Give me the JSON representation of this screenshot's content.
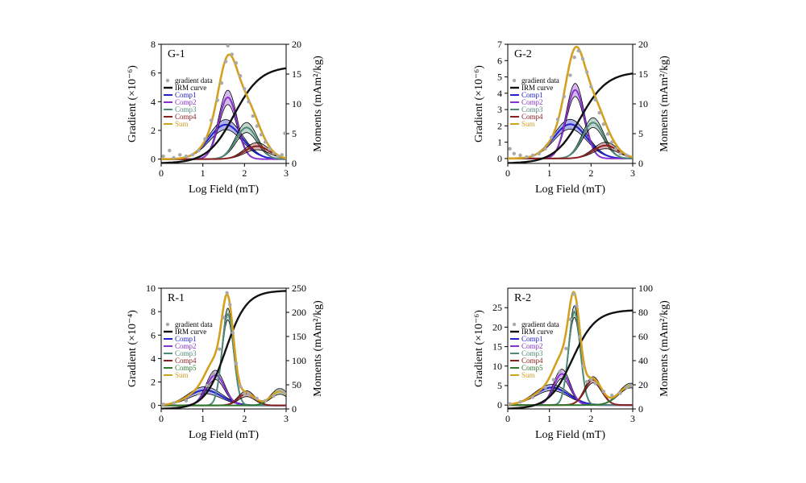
{
  "chart_data": [
    {
      "type": "line",
      "label": "G-1",
      "xlabel": "Log Field (mT)",
      "ylabel": "Gradient (×10⁻⁶)",
      "y2label": "Moments (mAm²/kg)",
      "xlim": [
        0,
        3
      ],
      "ylim": [
        -0.3,
        8
      ],
      "y2lim": [
        0,
        20
      ],
      "xticks": [
        "0",
        "1",
        "2",
        "3"
      ],
      "yticks": [
        "0",
        "2",
        "4",
        "6",
        "8"
      ],
      "y2ticks": [
        "0",
        "5",
        "10",
        "15",
        "20"
      ],
      "legend": [
        "gradient data",
        "IRM curve",
        "Comp1",
        "Comp2",
        "Comp3",
        "Comp4",
        "Sum"
      ],
      "components": [
        {
          "name": "Comp1",
          "color": "#2222cc",
          "center": 1.55,
          "width": 0.4,
          "amp": 2.4,
          "band": 0.35
        },
        {
          "name": "Comp2",
          "color": "#8833cc",
          "center": 1.6,
          "width": 0.22,
          "amp": 4.3,
          "band": 0.5
        },
        {
          "name": "Comp3",
          "color": "#4f8a78",
          "center": 2.05,
          "width": 0.26,
          "amp": 2.2,
          "band": 0.35
        },
        {
          "name": "Comp4",
          "color": "#8b2020",
          "center": 2.3,
          "width": 0.3,
          "amp": 0.9,
          "band": 0.25
        }
      ],
      "sum_color": "#d4a020",
      "irm": {
        "center": 1.75,
        "width": 0.32,
        "max": 16.3
      },
      "gradient_points": [
        [
          0.05,
          0.2
        ],
        [
          0.2,
          0.6
        ],
        [
          0.3,
          0.1
        ],
        [
          0.45,
          0.3
        ],
        [
          0.6,
          0.2
        ],
        [
          0.75,
          0.3
        ],
        [
          0.9,
          0.6
        ],
        [
          1.05,
          1.4
        ],
        [
          1.2,
          2.7
        ],
        [
          1.35,
          4.1
        ],
        [
          1.45,
          5.3
        ],
        [
          1.55,
          6.8
        ],
        [
          1.6,
          7.9
        ],
        [
          1.7,
          7.3
        ],
        [
          1.8,
          6.7
        ],
        [
          1.9,
          5.8
        ],
        [
          2.0,
          4.9
        ],
        [
          2.1,
          4.0
        ],
        [
          2.2,
          3.0
        ],
        [
          2.3,
          2.3
        ],
        [
          2.4,
          1.7
        ],
        [
          2.5,
          1.2
        ],
        [
          2.6,
          0.7
        ],
        [
          2.7,
          0.4
        ],
        [
          2.8,
          0.2
        ],
        [
          2.9,
          0.3
        ],
        [
          2.97,
          1.8
        ]
      ]
    },
    {
      "type": "line",
      "label": "G-2",
      "xlabel": "Log Field (mT)",
      "ylabel": "Gradient (×10⁻⁶)",
      "y2label": "Moments (mAm²/kg)",
      "xlim": [
        0,
        3
      ],
      "ylim": [
        -0.3,
        7
      ],
      "y2lim": [
        0,
        20
      ],
      "xticks": [
        "0",
        "1",
        "2",
        "3"
      ],
      "yticks": [
        "0",
        "1",
        "2",
        "3",
        "4",
        "5",
        "6",
        "7"
      ],
      "y2ticks": [
        "0",
        "5",
        "10",
        "15",
        "20"
      ],
      "legend": [
        "gradient data",
        "IRM curve",
        "Comp1",
        "Comp2",
        "Comp3",
        "Comp4",
        "Sum"
      ],
      "components": [
        {
          "name": "Comp1",
          "color": "#2222cc",
          "center": 1.5,
          "width": 0.4,
          "amp": 2.1,
          "band": 0.3
        },
        {
          "name": "Comp2",
          "color": "#8833cc",
          "center": 1.62,
          "width": 0.22,
          "amp": 4.2,
          "band": 0.4
        },
        {
          "name": "Comp3",
          "color": "#4f8a78",
          "center": 2.05,
          "width": 0.26,
          "amp": 2.2,
          "band": 0.3
        },
        {
          "name": "Comp4",
          "color": "#8b2020",
          "center": 2.35,
          "width": 0.3,
          "amp": 0.8,
          "band": 0.2
        }
      ],
      "sum_color": "#d4a020",
      "irm": {
        "center": 1.75,
        "width": 0.32,
        "max": 15.4
      },
      "gradient_points": [
        [
          0.05,
          0.6
        ],
        [
          0.15,
          0.3
        ],
        [
          0.3,
          0.2
        ],
        [
          0.45,
          0.1
        ],
        [
          0.6,
          0.2
        ],
        [
          0.75,
          0.3
        ],
        [
          0.9,
          0.6
        ],
        [
          1.05,
          1.3
        ],
        [
          1.2,
          2.4
        ],
        [
          1.35,
          3.8
        ],
        [
          1.5,
          5.1
        ],
        [
          1.6,
          6.2
        ],
        [
          1.7,
          6.6
        ],
        [
          1.8,
          6.1
        ],
        [
          1.9,
          5.3
        ],
        [
          2.0,
          4.4
        ],
        [
          2.1,
          3.6
        ],
        [
          2.2,
          2.8
        ],
        [
          2.3,
          2.1
        ],
        [
          2.4,
          1.5
        ],
        [
          2.5,
          1.0
        ],
        [
          2.6,
          0.6
        ],
        [
          2.7,
          0.3
        ],
        [
          2.85,
          0.2
        ]
      ]
    },
    {
      "type": "line",
      "label": "R-1",
      "xlabel": "Log Field (mT)",
      "ylabel": "Gradient (×10⁻⁴)",
      "y2label": "Moments (mAm²/kg)",
      "xlim": [
        0,
        3
      ],
      "ylim": [
        -0.3,
        10
      ],
      "y2lim": [
        0,
        250
      ],
      "xticks": [
        "0",
        "1",
        "2",
        "3"
      ],
      "yticks": [
        "0",
        "2",
        "4",
        "6",
        "8",
        "10"
      ],
      "y2ticks": [
        "0",
        "50",
        "100",
        "150",
        "200",
        "250"
      ],
      "legend": [
        "gradient data",
        "IRM curve",
        "Comp1",
        "Comp2",
        "Comp3",
        "Comp4",
        "Comp5",
        "Sum"
      ],
      "components": [
        {
          "name": "Comp1",
          "color": "#2222cc",
          "center": 1.05,
          "width": 0.4,
          "amp": 1.3,
          "band": 0.3
        },
        {
          "name": "Comp2",
          "color": "#8833cc",
          "center": 1.3,
          "width": 0.22,
          "amp": 2.6,
          "band": 0.4
        },
        {
          "name": "Comp3",
          "color": "#4f8a78",
          "center": 1.6,
          "width": 0.14,
          "amp": 7.8,
          "band": 0.5
        },
        {
          "name": "Comp4",
          "color": "#8b2020",
          "center": 2.05,
          "width": 0.2,
          "amp": 1.0,
          "band": 0.25
        },
        {
          "name": "Comp5",
          "color": "#2d7a2d",
          "center": 2.85,
          "width": 0.22,
          "amp": 1.2,
          "band": 0.25
        }
      ],
      "sum_color": "#d4a020",
      "irm": {
        "center": 1.55,
        "width": 0.25,
        "max": 245
      },
      "gradient_points": [
        [
          0.05,
          0.1
        ],
        [
          0.3,
          0.2
        ],
        [
          0.6,
          0.4
        ],
        [
          0.9,
          1.0
        ],
        [
          1.1,
          1.7
        ],
        [
          1.25,
          2.7
        ],
        [
          1.4,
          4.8
        ],
        [
          1.5,
          7.5
        ],
        [
          1.58,
          9.6
        ],
        [
          1.65,
          8.6
        ],
        [
          1.72,
          6.2
        ],
        [
          1.8,
          3.6
        ],
        [
          1.9,
          1.6
        ],
        [
          2.0,
          1.0
        ],
        [
          2.1,
          1.0
        ],
        [
          2.3,
          0.6
        ],
        [
          2.5,
          0.4
        ],
        [
          2.7,
          0.8
        ],
        [
          2.85,
          1.3
        ],
        [
          2.95,
          1.1
        ]
      ]
    },
    {
      "type": "line",
      "label": "R-2",
      "xlabel": "Log Field (mT)",
      "ylabel": "Gradient (×10⁻⁶)",
      "y2label": "Moments (mAm²/kg)",
      "xlim": [
        0,
        3
      ],
      "ylim": [
        -1,
        30
      ],
      "y2lim": [
        0,
        100
      ],
      "xticks": [
        "0",
        "1",
        "2",
        "3"
      ],
      "yticks": [
        "0",
        "5",
        "10",
        "15",
        "20",
        "25"
      ],
      "y2ticks": [
        "0",
        "20",
        "40",
        "60",
        "80",
        "100"
      ],
      "legend": [
        "gradient data",
        "IRM curve",
        "Comp1",
        "Comp2",
        "Comp3",
        "Comp4",
        "Comp5",
        "Sum"
      ],
      "components": [
        {
          "name": "Comp1",
          "color": "#2222cc",
          "center": 1.05,
          "width": 0.4,
          "amp": 4.5,
          "band": 0.8
        },
        {
          "name": "Comp2",
          "color": "#8833cc",
          "center": 1.3,
          "width": 0.2,
          "amp": 8.0,
          "band": 1.2
        },
        {
          "name": "Comp3",
          "color": "#4f8a78",
          "center": 1.6,
          "width": 0.14,
          "amp": 24.0,
          "band": 1.5
        },
        {
          "name": "Comp4",
          "color": "#8b2020",
          "center": 2.05,
          "width": 0.2,
          "amp": 6.5,
          "band": 0.8
        },
        {
          "name": "Comp5",
          "color": "#2d7a2d",
          "center": 2.95,
          "width": 0.28,
          "amp": 5.0,
          "band": 0.6
        }
      ],
      "sum_color": "#d4a020",
      "irm": {
        "center": 1.55,
        "width": 0.28,
        "max": 82
      },
      "gradient_points": [
        [
          0.05,
          0.3
        ],
        [
          0.3,
          0.8
        ],
        [
          0.6,
          2.0
        ],
        [
          0.9,
          4.5
        ],
        [
          1.1,
          6.5
        ],
        [
          1.25,
          8.6
        ],
        [
          1.4,
          14.5
        ],
        [
          1.5,
          22.0
        ],
        [
          1.58,
          28.5
        ],
        [
          1.65,
          25.5
        ],
        [
          1.72,
          17.5
        ],
        [
          1.8,
          10.0
        ],
        [
          1.9,
          6.0
        ],
        [
          2.0,
          6.5
        ],
        [
          2.1,
          5.5
        ],
        [
          2.3,
          3.5
        ],
        [
          2.5,
          2.5
        ],
        [
          2.7,
          3.0
        ],
        [
          2.85,
          4.5
        ],
        [
          2.95,
          5.0
        ]
      ]
    }
  ]
}
